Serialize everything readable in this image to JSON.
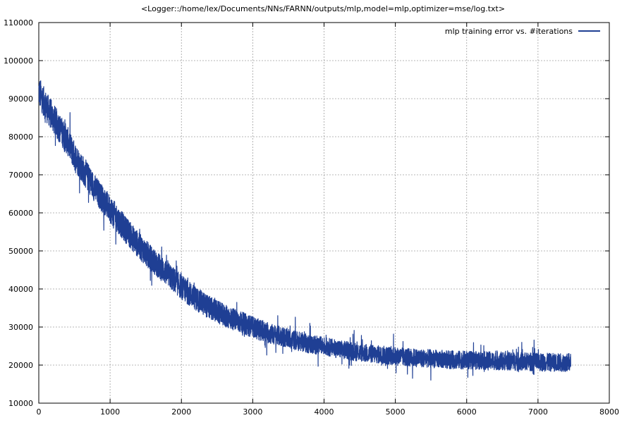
{
  "chart_data": {
    "type": "line",
    "title": "<Logger::/home/lex/Documents/NNs/FARNN/outputs/mlp,model=mlp,optimizer=mse/log.txt>",
    "xlabel": "",
    "ylabel": "",
    "xlim": [
      0,
      8000
    ],
    "ylim": [
      10000,
      110000
    ],
    "x_ticks": [
      "0",
      "1000",
      "2000",
      "3000",
      "4000",
      "5000",
      "6000",
      "7000",
      "8000"
    ],
    "y_ticks": [
      "10000",
      "20000",
      "30000",
      "40000",
      "50000",
      "60000",
      "70000",
      "80000",
      "90000",
      "100000",
      "110000"
    ],
    "grid": true,
    "legend_position": "top-right",
    "series": [
      {
        "name": "mlp training error vs. #iterations",
        "color": "#1f3f94",
        "x_range": [
          0,
          7460
        ],
        "noise": "high-frequency oscillation of roughly ±3500 around the trend",
        "trend": {
          "x": [
            0,
            100,
            200,
            300,
            400,
            500,
            600,
            700,
            800,
            900,
            1000,
            1200,
            1400,
            1600,
            1800,
            2000,
            2200,
            2400,
            2600,
            2800,
            3000,
            3200,
            3400,
            3600,
            3800,
            4000,
            4200,
            4400,
            4600,
            4800,
            5000,
            5200,
            5400,
            5600,
            5800,
            6000,
            6200,
            6400,
            6600,
            6800,
            7000,
            7200,
            7460
          ],
          "y": [
            92000,
            88000,
            85000,
            82000,
            79000,
            75000,
            72000,
            69000,
            66000,
            63500,
            61000,
            56000,
            51500,
            47500,
            44000,
            40500,
            37500,
            35000,
            33000,
            31500,
            30000,
            28500,
            27500,
            26500,
            25500,
            25000,
            24200,
            23600,
            23100,
            22700,
            22300,
            22000,
            21800,
            21600,
            21400,
            21300,
            21200,
            21100,
            21000,
            20900,
            20800,
            20700,
            20700
          ]
        }
      }
    ]
  }
}
